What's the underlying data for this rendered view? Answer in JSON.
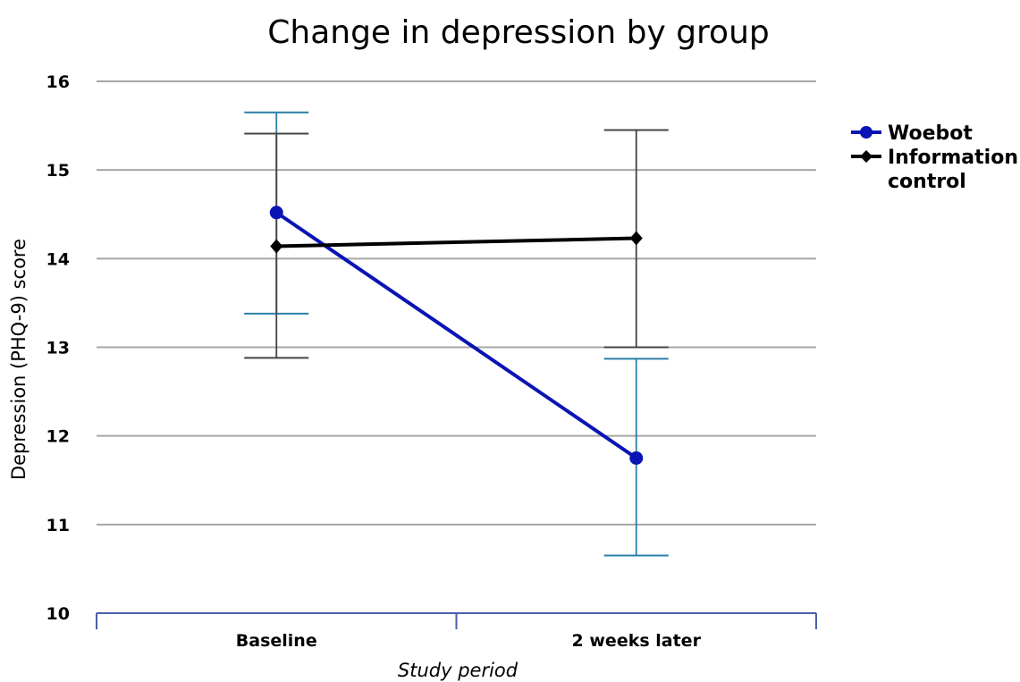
{
  "chart_data": {
    "type": "line",
    "title": "Change in depression by group",
    "xlabel": "Study period",
    "ylabel": "Depression (PHQ-9) score",
    "ylim": [
      10,
      16
    ],
    "yticks": [
      "10",
      "11",
      "12",
      "13",
      "14",
      "15",
      "16"
    ],
    "categories": [
      "Baseline",
      "2 weeks later"
    ],
    "grid": true,
    "legend_position": "right",
    "series": [
      {
        "name": "Woebot",
        "color": "#0a14b4",
        "error_color": "#2a7fa8",
        "marker": "circle",
        "values": [
          14.52,
          11.75
        ],
        "error_low": [
          13.38,
          10.65
        ],
        "error_high": [
          15.65,
          12.87
        ]
      },
      {
        "name": "Information control",
        "legend_lines": [
          "Information",
          "control"
        ],
        "color": "#000000",
        "error_color": "#444444",
        "marker": "diamond",
        "values": [
          14.14,
          14.23
        ],
        "error_low": [
          12.88,
          13.0
        ],
        "error_high": [
          15.41,
          15.45
        ]
      }
    ]
  }
}
